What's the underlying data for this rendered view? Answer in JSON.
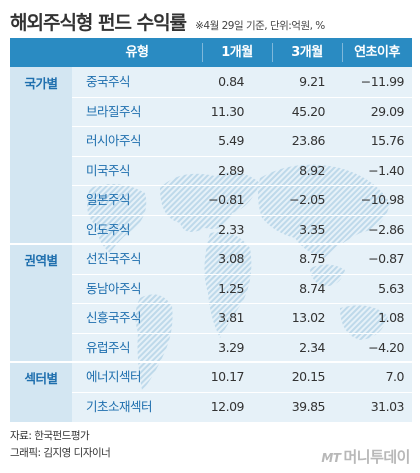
{
  "title": "해외주식형 펀드 수익률",
  "note": "※4월 29일 기준, 단위:억원, %",
  "columns": [
    "유형",
    "1개월",
    "3개월",
    "연초이후"
  ],
  "groups": [
    {
      "label": "국가별",
      "rows": [
        {
          "name": "중국주식",
          "m1": "0.84",
          "m3": "9.21",
          "ytd": "−11.99"
        },
        {
          "name": "브라질주식",
          "m1": "11.30",
          "m3": "45.20",
          "ytd": "29.09"
        },
        {
          "name": "러시아주식",
          "m1": "5.49",
          "m3": "23.86",
          "ytd": "15.76"
        },
        {
          "name": "미국주식",
          "m1": "2.89",
          "m3": "8.92",
          "ytd": "−1.40"
        },
        {
          "name": "일본주식",
          "m1": "−0.81",
          "m3": "−2.05",
          "ytd": "−10.98"
        },
        {
          "name": "인도주식",
          "m1": "2.33",
          "m3": "3.35",
          "ytd": "−2.86"
        }
      ]
    },
    {
      "label": "권역별",
      "rows": [
        {
          "name": "선진국주식",
          "m1": "3.08",
          "m3": "8.75",
          "ytd": "−0.87"
        },
        {
          "name": "동남아주식",
          "m1": "1.25",
          "m3": "8.74",
          "ytd": "5.63"
        },
        {
          "name": "신흥국주식",
          "m1": "3.81",
          "m3": "13.02",
          "ytd": "1.08"
        },
        {
          "name": "유럽주식",
          "m1": "3.29",
          "m3": "2.34",
          "ytd": "−4.20"
        }
      ]
    },
    {
      "label": "섹터별",
      "rows": [
        {
          "name": "에너지섹터",
          "m1": "10.17",
          "m3": "20.15",
          "ytd": "7.0"
        },
        {
          "name": "기초소재섹터",
          "m1": "12.09",
          "m3": "39.85",
          "ytd": "31.03"
        }
      ]
    }
  ],
  "chart_data": {
    "type": "table",
    "title": "해외주식형 펀드 수익률",
    "columns": [
      "유형",
      "1개월",
      "3개월",
      "연초이후"
    ],
    "rows": [
      {
        "group": "국가별",
        "name": "중국주식",
        "values": [
          0.84,
          9.21,
          -11.99
        ]
      },
      {
        "group": "국가별",
        "name": "브라질주식",
        "values": [
          11.3,
          45.2,
          29.09
        ]
      },
      {
        "group": "국가별",
        "name": "러시아주식",
        "values": [
          5.49,
          23.86,
          15.76
        ]
      },
      {
        "group": "국가별",
        "name": "미국주식",
        "values": [
          2.89,
          8.92,
          -1.4
        ]
      },
      {
        "group": "국가별",
        "name": "일본주식",
        "values": [
          -0.81,
          -2.05,
          -10.98
        ]
      },
      {
        "group": "국가별",
        "name": "인도주식",
        "values": [
          2.33,
          3.35,
          -2.86
        ]
      },
      {
        "group": "권역별",
        "name": "선진국주식",
        "values": [
          3.08,
          8.75,
          -0.87
        ]
      },
      {
        "group": "권역별",
        "name": "동남아주식",
        "values": [
          1.25,
          8.74,
          5.63
        ]
      },
      {
        "group": "권역별",
        "name": "신흥국주식",
        "values": [
          3.81,
          13.02,
          1.08
        ]
      },
      {
        "group": "권역별",
        "name": "유럽주식",
        "values": [
          3.29,
          2.34,
          -4.2
        ]
      },
      {
        "group": "섹터별",
        "name": "에너지섹터",
        "values": [
          10.17,
          20.15,
          7.0
        ]
      },
      {
        "group": "섹터별",
        "name": "기초소재섹터",
        "values": [
          12.09,
          39.85,
          31.03
        ]
      }
    ]
  },
  "footer": {
    "source": "자료: 한국펀드평가",
    "graphic": "그래픽: 김지영 디자이너"
  },
  "logo": {
    "mark": "MT",
    "name": "머니투데이"
  },
  "colors": {
    "header": "#2a8bc2",
    "body": "#e6f1f8",
    "group": "#d3e6f2",
    "label": "#1f6fae",
    "map": "#bfd9ea"
  }
}
